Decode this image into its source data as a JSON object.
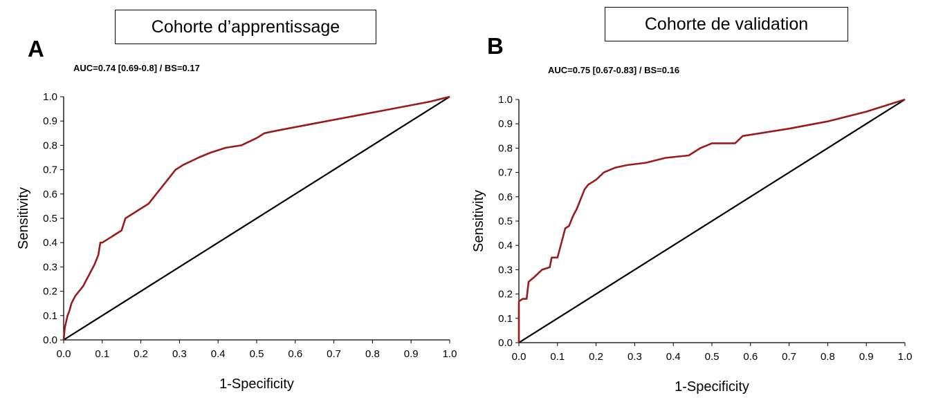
{
  "panels": [
    {
      "letter": "A",
      "cohort_label": "Cohorte d’apprentissage",
      "auc_label": "AUC=0.74 [0.69-0.8] / BS=0.17"
    },
    {
      "letter": "B",
      "cohort_label": "Cohorte de validation",
      "auc_label": "AUC=0.75 [0.67-0.83] / BS=0.16"
    }
  ],
  "colors": {
    "roc": "#9b1b1b",
    "reference": "#000000",
    "axis": "#000000"
  },
  "chart_data": [
    {
      "type": "line",
      "title": "AUC=0.74 [0.69-0.8] / BS=0.17",
      "xlabel": "1-Specificity",
      "ylabel": "Sensitivity",
      "xlim": [
        0,
        1
      ],
      "ylim": [
        0,
        1
      ],
      "x_ticks": [
        "0.0",
        "0.1",
        "0.2",
        "0.3",
        "0.4",
        "0.5",
        "0.6",
        "0.7",
        "0.8",
        "0.9",
        "1.0"
      ],
      "y_ticks": [
        "0.0",
        "0.1",
        "0.2",
        "0.3",
        "0.4",
        "0.5",
        "0.6",
        "0.7",
        "0.8",
        "0.9",
        "1.0"
      ],
      "grid": false,
      "series": [
        {
          "color": "#9b1b1b",
          "x": [
            0,
            0.003,
            0.01,
            0.015,
            0.02,
            0.03,
            0.04,
            0.05,
            0.06,
            0.07,
            0.08,
            0.09,
            0.095,
            0.1,
            0.12,
            0.13,
            0.15,
            0.16,
            0.17,
            0.18,
            0.2,
            0.22,
            0.24,
            0.25,
            0.27,
            0.29,
            0.31,
            0.35,
            0.38,
            0.42,
            0.46,
            0.5,
            0.52,
            0.55,
            0.65,
            0.75,
            0.85,
            0.95,
            1.0
          ],
          "y": [
            0,
            0.05,
            0.1,
            0.12,
            0.15,
            0.18,
            0.2,
            0.22,
            0.25,
            0.28,
            0.31,
            0.35,
            0.4,
            0.4,
            0.42,
            0.43,
            0.45,
            0.5,
            0.51,
            0.52,
            0.54,
            0.56,
            0.6,
            0.62,
            0.66,
            0.7,
            0.72,
            0.75,
            0.77,
            0.79,
            0.8,
            0.83,
            0.85,
            0.86,
            0.89,
            0.92,
            0.95,
            0.98,
            1.0
          ]
        },
        {
          "color": "#000000",
          "x": [
            0,
            1
          ],
          "y": [
            0,
            1
          ]
        }
      ]
    },
    {
      "type": "line",
      "title": "AUC=0.75 [0.67-0.83] / BS=0.16",
      "xlabel": "1-Specificity",
      "ylabel": "Sensitivity",
      "xlim": [
        0,
        1
      ],
      "ylim": [
        0,
        1
      ],
      "x_ticks": [
        "0.0",
        "0.1",
        "0.2",
        "0.3",
        "0.4",
        "0.5",
        "0.6",
        "0.7",
        "0.8",
        "0.9",
        "1.0"
      ],
      "y_ticks": [
        "0.0",
        "0.1",
        "0.2",
        "0.3",
        "0.4",
        "0.5",
        "0.6",
        "0.7",
        "0.8",
        "0.9",
        "1.0"
      ],
      "grid": false,
      "series": [
        {
          "color": "#9b1b1b",
          "x": [
            0,
            0,
            0.01,
            0.02,
            0.025,
            0.04,
            0.06,
            0.08,
            0.085,
            0.1,
            0.11,
            0.12,
            0.13,
            0.14,
            0.15,
            0.16,
            0.17,
            0.18,
            0.19,
            0.2,
            0.22,
            0.25,
            0.28,
            0.33,
            0.38,
            0.44,
            0.47,
            0.5,
            0.56,
            0.58,
            0.62,
            0.7,
            0.8,
            0.9,
            1.0
          ],
          "y": [
            0,
            0.17,
            0.18,
            0.18,
            0.25,
            0.27,
            0.3,
            0.31,
            0.35,
            0.35,
            0.41,
            0.47,
            0.48,
            0.52,
            0.55,
            0.59,
            0.63,
            0.65,
            0.66,
            0.67,
            0.7,
            0.72,
            0.73,
            0.74,
            0.76,
            0.77,
            0.8,
            0.82,
            0.82,
            0.85,
            0.86,
            0.88,
            0.91,
            0.95,
            1.0
          ]
        },
        {
          "color": "#000000",
          "x": [
            0,
            1
          ],
          "y": [
            0,
            1
          ]
        }
      ]
    }
  ]
}
